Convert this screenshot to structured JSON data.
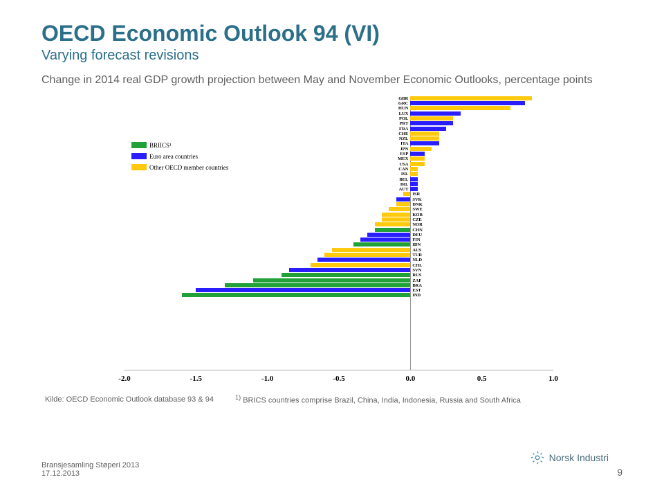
{
  "title": "OECD Economic Outlook 94 (VI)",
  "subtitle": "Varying forecast revisions",
  "description": "Change in 2014 real GDP growth projection between May and November Economic Outlooks, percentage points",
  "source": "Kilde: OECD Economic Outlook database 93 & 94",
  "footnote_marker": "1)",
  "footnote_text": "BRICS countries comprise Brazil, China, India, Indonesia, Russia and South Africa",
  "footer_event": "Bransjesamling Støperi 2013",
  "footer_date": "17.12.2013",
  "page_number": "9",
  "logo_text": "Norsk Industri",
  "chart": {
    "type": "bar",
    "background_color": "#ffffff",
    "grid_color": "#bbbbbb",
    "xlim": [
      -2.0,
      1.0
    ],
    "xticks": [
      -2.0,
      -1.5,
      -1.0,
      -0.5,
      0.0,
      0.5,
      1.0
    ],
    "xtick_labels": [
      "-2.0",
      "-1.5",
      "-1.0",
      "-0.5",
      "0.0",
      "0.5",
      "1.0"
    ],
    "legend_items": [
      {
        "label": "BRIICS¹",
        "color": "#21a138"
      },
      {
        "label": "Euro area countries",
        "color": "#2a1eff"
      },
      {
        "label": "Other OECD member countries",
        "color": "#ffc90e"
      }
    ],
    "colors": {
      "briics": "#21a138",
      "euro": "#2a1eff",
      "other": "#ffc90e"
    },
    "bars": [
      {
        "code": "GBR",
        "value": 0.85,
        "cat": "other"
      },
      {
        "code": "GRC",
        "value": 0.8,
        "cat": "euro"
      },
      {
        "code": "HUN",
        "value": 0.7,
        "cat": "other"
      },
      {
        "code": "LUX",
        "value": 0.35,
        "cat": "euro"
      },
      {
        "code": "POL",
        "value": 0.3,
        "cat": "other"
      },
      {
        "code": "PRT",
        "value": 0.3,
        "cat": "euro"
      },
      {
        "code": "FRA",
        "value": 0.25,
        "cat": "euro"
      },
      {
        "code": "CHE",
        "value": 0.2,
        "cat": "other"
      },
      {
        "code": "NZL",
        "value": 0.2,
        "cat": "other"
      },
      {
        "code": "ITA",
        "value": 0.2,
        "cat": "euro"
      },
      {
        "code": "JPN",
        "value": 0.15,
        "cat": "other"
      },
      {
        "code": "ESP",
        "value": 0.1,
        "cat": "euro"
      },
      {
        "code": "MEX",
        "value": 0.1,
        "cat": "other"
      },
      {
        "code": "USA",
        "value": 0.1,
        "cat": "other"
      },
      {
        "code": "CAN",
        "value": 0.05,
        "cat": "other"
      },
      {
        "code": "ISL",
        "value": 0.05,
        "cat": "other"
      },
      {
        "code": "BEL",
        "value": 0.05,
        "cat": "euro"
      },
      {
        "code": "IRL",
        "value": 0.05,
        "cat": "euro"
      },
      {
        "code": "AUT",
        "value": 0.05,
        "cat": "euro"
      },
      {
        "code": "ISR",
        "value": -0.05,
        "cat": "other"
      },
      {
        "code": "SVK",
        "value": -0.1,
        "cat": "euro"
      },
      {
        "code": "DNK",
        "value": -0.1,
        "cat": "other"
      },
      {
        "code": "SWE",
        "value": -0.15,
        "cat": "other"
      },
      {
        "code": "KOR",
        "value": -0.2,
        "cat": "other"
      },
      {
        "code": "CZE",
        "value": -0.2,
        "cat": "other"
      },
      {
        "code": "NOR",
        "value": -0.25,
        "cat": "other"
      },
      {
        "code": "CHN",
        "value": -0.25,
        "cat": "briics"
      },
      {
        "code": "DEU",
        "value": -0.3,
        "cat": "euro"
      },
      {
        "code": "FIN",
        "value": -0.35,
        "cat": "euro"
      },
      {
        "code": "IDN",
        "value": -0.4,
        "cat": "briics"
      },
      {
        "code": "AUS",
        "value": -0.55,
        "cat": "other"
      },
      {
        "code": "TUR",
        "value": -0.6,
        "cat": "other"
      },
      {
        "code": "NLD",
        "value": -0.65,
        "cat": "euro"
      },
      {
        "code": "CHL",
        "value": -0.7,
        "cat": "other"
      },
      {
        "code": "SVN",
        "value": -0.85,
        "cat": "euro"
      },
      {
        "code": "RUS",
        "value": -0.9,
        "cat": "briics"
      },
      {
        "code": "ZAF",
        "value": -1.1,
        "cat": "briics"
      },
      {
        "code": "BRA",
        "value": -1.3,
        "cat": "briics"
      },
      {
        "code": "EST",
        "value": -1.5,
        "cat": "euro"
      },
      {
        "code": "IND",
        "value": -1.6,
        "cat": "briics"
      }
    ]
  }
}
